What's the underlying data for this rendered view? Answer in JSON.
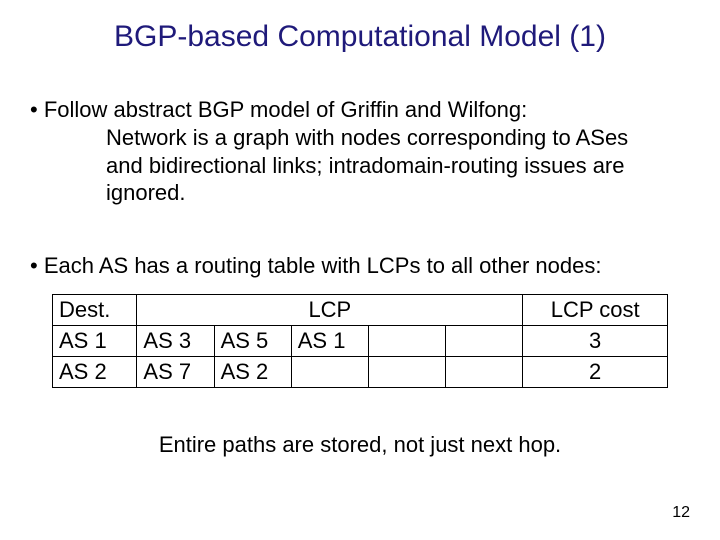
{
  "title": {
    "text": "BGP-based Computational Model  (1)",
    "color": "#1f1a7a"
  },
  "bullet1": {
    "lead": "• Follow abstract BGP model of  Griffin and Wilfong:",
    "body": "Network is a graph with nodes corresponding to ASes and bidirectional links; intradomain-routing issues are ignored."
  },
  "bullet2": "• Each AS has a routing table with  LCPs to all other nodes:",
  "table": {
    "head_dest": "Dest.",
    "head_lcp": "LCP",
    "head_cost": "LCP cost",
    "rows": [
      {
        "dest": "AS 1",
        "hops": [
          "AS 3",
          "AS 5",
          "AS 1",
          "",
          ""
        ],
        "cost": "3"
      },
      {
        "dest": "AS 2",
        "hops": [
          "AS 7",
          "AS 2",
          "",
          "",
          ""
        ],
        "cost": "2"
      }
    ]
  },
  "closing": "Entire paths are stored, not just next hop.",
  "page_number": "12",
  "colors": {
    "title": "#1f1a7a",
    "body": "#000000",
    "border": "#000000",
    "bg": "#ffffff"
  }
}
